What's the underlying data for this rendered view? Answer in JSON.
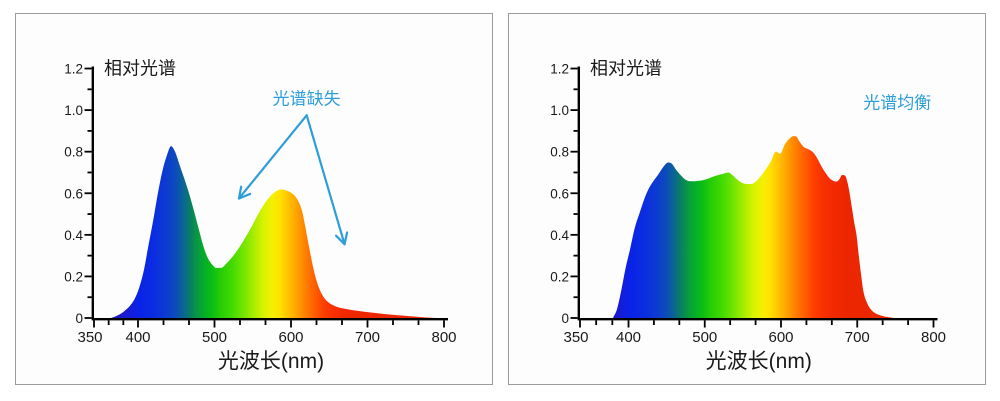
{
  "page": {
    "background": "#ffffff",
    "panel_border": "#9c9c9c",
    "panel_bg": "#fdfdfd",
    "text_color": "#1a1a1a"
  },
  "chart_data": [
    {
      "type": "area",
      "title": "相对光谱",
      "xlabel": "光波长(nm)",
      "annotation": {
        "text": "光谱缺失",
        "color": "#2e9ed9",
        "at": [
          620.5,
          1.1
        ],
        "arrows": [
          {
            "from": [
              620.5,
              0.975
            ],
            "to": [
              532,
              0.575
            ]
          },
          {
            "from": [
              620.5,
              0.975
            ],
            "to": [
              670,
              0.355
            ]
          }
        ]
      },
      "xlim": [
        350,
        800
      ],
      "ylim": [
        0,
        1.2
      ],
      "xticks": [
        350,
        400,
        500,
        600,
        700,
        800
      ],
      "yticks": [
        0,
        0.2,
        0.4,
        0.6,
        0.8,
        1.0,
        1.2
      ],
      "points": [
        [
          369.5,
          0
        ],
        [
          376.6,
          0.012
        ],
        [
          383.6,
          0.03
        ],
        [
          390.7,
          0.058
        ],
        [
          396,
          0.09
        ],
        [
          401.5,
          0.145
        ],
        [
          407.7,
          0.23
        ],
        [
          413.7,
          0.35
        ],
        [
          419.9,
          0.47
        ],
        [
          426,
          0.6
        ],
        [
          432.1,
          0.71
        ],
        [
          437.1,
          0.775
        ],
        [
          443.3,
          0.827
        ],
        [
          448.4,
          0.8
        ],
        [
          454.5,
          0.735
        ],
        [
          460.6,
          0.67
        ],
        [
          466.7,
          0.6
        ],
        [
          472.8,
          0.52
        ],
        [
          478.9,
          0.435
        ],
        [
          485.1,
          0.35
        ],
        [
          491.1,
          0.29
        ],
        [
          497.2,
          0.256
        ],
        [
          502,
          0.241
        ],
        [
          509.5,
          0.242
        ],
        [
          515.6,
          0.262
        ],
        [
          523.7,
          0.295
        ],
        [
          531.9,
          0.337
        ],
        [
          540,
          0.385
        ],
        [
          548.2,
          0.438
        ],
        [
          556.3,
          0.495
        ],
        [
          564.5,
          0.545
        ],
        [
          572.7,
          0.585
        ],
        [
          580.8,
          0.61
        ],
        [
          586.9,
          0.618
        ],
        [
          594,
          0.613
        ],
        [
          601.2,
          0.6
        ],
        [
          606.2,
          0.582
        ],
        [
          610.3,
          0.556
        ],
        [
          614.4,
          0.515
        ],
        [
          618.4,
          0.445
        ],
        [
          622.5,
          0.363
        ],
        [
          626.6,
          0.285
        ],
        [
          630.7,
          0.215
        ],
        [
          634.8,
          0.163
        ],
        [
          639.9,
          0.117
        ],
        [
          645,
          0.089
        ],
        [
          651,
          0.07
        ],
        [
          659.2,
          0.055
        ],
        [
          669.4,
          0.045
        ],
        [
          681.6,
          0.037
        ],
        [
          695.8,
          0.03
        ],
        [
          710.1,
          0.024
        ],
        [
          725.4,
          0.018
        ],
        [
          739.6,
          0.013
        ],
        [
          753.9,
          0.009
        ],
        [
          768.2,
          0.005
        ],
        [
          780.4,
          0.002
        ],
        [
          790.6,
          0
        ]
      ],
      "gradient": [
        [
          368,
          "#2116b4"
        ],
        [
          387,
          "#1a1ad0"
        ],
        [
          401,
          "#0a22e8"
        ],
        [
          419,
          "#0b2ce2"
        ],
        [
          436,
          "#0c3ad2"
        ],
        [
          449,
          "#0c4bbb"
        ],
        [
          459,
          "#0a6496"
        ],
        [
          469,
          "#098060"
        ],
        [
          478,
          "#079a40"
        ],
        [
          487,
          "#06ae28"
        ],
        [
          497,
          "#0abe14"
        ],
        [
          508,
          "#26cc06"
        ],
        [
          522,
          "#40da00"
        ],
        [
          536,
          "#6ce400"
        ],
        [
          550,
          "#a2ec00"
        ],
        [
          564,
          "#d8f200"
        ],
        [
          576,
          "#f4f000"
        ],
        [
          586,
          "#ffe000"
        ],
        [
          596,
          "#ffc400"
        ],
        [
          607,
          "#ffa400"
        ],
        [
          618,
          "#ff8200"
        ],
        [
          631,
          "#ff5e00"
        ],
        [
          643,
          "#ff3e00"
        ],
        [
          655,
          "#f93000"
        ],
        [
          668,
          "#f22900"
        ],
        [
          687,
          "#ec2600"
        ],
        [
          800,
          "#e92803"
        ]
      ]
    },
    {
      "type": "area",
      "title": "相对光谱",
      "xlabel": "光波长(nm)",
      "annotation": {
        "text": "光谱均衡",
        "color": "#2e9ed9",
        "at": [
          752.5,
          1.08
        ],
        "arrows": []
      },
      "xlim": [
        350,
        800
      ],
      "ylim": [
        0,
        1.2
      ],
      "xticks": [
        350,
        400,
        500,
        600,
        700,
        800
      ],
      "yticks": [
        0,
        0.2,
        0.4,
        0.6,
        0.8,
        1.0,
        1.2
      ],
      "points": [
        [
          384,
          0
        ],
        [
          388,
          0.04
        ],
        [
          392,
          0.12
        ],
        [
          397,
          0.24
        ],
        [
          402,
          0.33
        ],
        [
          408,
          0.43
        ],
        [
          415,
          0.51
        ],
        [
          421,
          0.575
        ],
        [
          427,
          0.625
        ],
        [
          433,
          0.66
        ],
        [
          439,
          0.69
        ],
        [
          446,
          0.728
        ],
        [
          452,
          0.748
        ],
        [
          457,
          0.742
        ],
        [
          462,
          0.715
        ],
        [
          469,
          0.685
        ],
        [
          475,
          0.665
        ],
        [
          481,
          0.658
        ],
        [
          487,
          0.658
        ],
        [
          493,
          0.66
        ],
        [
          500,
          0.665
        ],
        [
          506,
          0.672
        ],
        [
          512,
          0.681
        ],
        [
          518,
          0.688
        ],
        [
          524,
          0.693
        ],
        [
          531,
          0.7
        ],
        [
          537,
          0.685
        ],
        [
          543,
          0.665
        ],
        [
          549,
          0.65
        ],
        [
          556,
          0.644
        ],
        [
          562,
          0.645
        ],
        [
          568,
          0.66
        ],
        [
          574,
          0.685
        ],
        [
          580,
          0.715
        ],
        [
          587,
          0.755
        ],
        [
          593,
          0.8
        ],
        [
          599,
          0.79
        ],
        [
          605,
          0.835
        ],
        [
          611,
          0.862
        ],
        [
          616,
          0.875
        ],
        [
          620,
          0.873
        ],
        [
          624,
          0.85
        ],
        [
          630,
          0.822
        ],
        [
          636,
          0.812
        ],
        [
          642,
          0.797
        ],
        [
          648,
          0.765
        ],
        [
          653,
          0.73
        ],
        [
          658,
          0.7
        ],
        [
          664,
          0.671
        ],
        [
          669,
          0.659
        ],
        [
          673,
          0.656
        ],
        [
          677,
          0.67
        ],
        [
          680,
          0.688
        ],
        [
          684,
          0.685
        ],
        [
          687,
          0.655
        ],
        [
          690,
          0.6
        ],
        [
          693,
          0.53
        ],
        [
          696,
          0.46
        ],
        [
          699,
          0.4
        ],
        [
          702,
          0.3
        ],
        [
          705,
          0.21
        ],
        [
          708,
          0.13
        ],
        [
          712,
          0.08
        ],
        [
          717,
          0.045
        ],
        [
          724,
          0.022
        ],
        [
          732,
          0.011
        ],
        [
          741,
          0.004
        ],
        [
          748,
          0
        ]
      ],
      "gradient": [
        [
          368,
          "#2116b4"
        ],
        [
          387,
          "#1a1ad0"
        ],
        [
          401,
          "#0a22e8"
        ],
        [
          419,
          "#0b2ce2"
        ],
        [
          436,
          "#0c3ad2"
        ],
        [
          449,
          "#0c4bbb"
        ],
        [
          459,
          "#0a6496"
        ],
        [
          469,
          "#098060"
        ],
        [
          478,
          "#079a40"
        ],
        [
          487,
          "#06ae28"
        ],
        [
          497,
          "#0abe14"
        ],
        [
          508,
          "#26cc06"
        ],
        [
          522,
          "#40da00"
        ],
        [
          536,
          "#6ce400"
        ],
        [
          550,
          "#a2ec00"
        ],
        [
          564,
          "#d8f200"
        ],
        [
          576,
          "#f4f000"
        ],
        [
          586,
          "#ffe000"
        ],
        [
          596,
          "#ffc400"
        ],
        [
          607,
          "#ffa400"
        ],
        [
          618,
          "#ff8200"
        ],
        [
          631,
          "#ff5e00"
        ],
        [
          643,
          "#ff3e00"
        ],
        [
          655,
          "#f93000"
        ],
        [
          668,
          "#f22900"
        ],
        [
          687,
          "#ec2600"
        ],
        [
          800,
          "#e92803"
        ]
      ]
    }
  ]
}
